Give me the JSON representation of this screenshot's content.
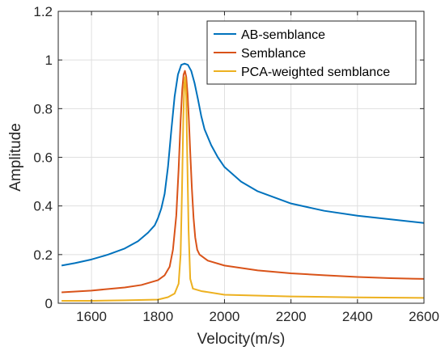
{
  "chart_data": {
    "type": "line",
    "title": "",
    "xlabel": "Velocity(m/s)",
    "ylabel": "Amplitude",
    "xlim": [
      1500,
      2600
    ],
    "ylim": [
      0,
      1.2
    ],
    "xticks": [
      1600,
      1800,
      2000,
      2200,
      2400,
      2600
    ],
    "xtick_labels": [
      "1600",
      "1800",
      "2000",
      "2200",
      "2400",
      "2600"
    ],
    "yticks": [
      0,
      0.2,
      0.4,
      0.6,
      0.8,
      1.0,
      1.2
    ],
    "ytick_labels": [
      "0",
      "0.2",
      "0.4",
      "0.6",
      "0.8",
      "1",
      "1.2"
    ],
    "grid": true,
    "legend_position": "top-right",
    "series": [
      {
        "name": "AB-semblance",
        "color": "#0072BD",
        "x": [
          1510,
          1550,
          1600,
          1650,
          1700,
          1740,
          1770,
          1790,
          1800,
          1810,
          1820,
          1830,
          1840,
          1850,
          1860,
          1870,
          1880,
          1890,
          1900,
          1910,
          1920,
          1930,
          1940,
          1960,
          1980,
          2000,
          2050,
          2100,
          2200,
          2300,
          2400,
          2500,
          2600
        ],
        "y": [
          0.155,
          0.165,
          0.18,
          0.2,
          0.225,
          0.255,
          0.29,
          0.32,
          0.35,
          0.39,
          0.45,
          0.56,
          0.71,
          0.85,
          0.94,
          0.98,
          0.985,
          0.98,
          0.955,
          0.905,
          0.84,
          0.77,
          0.715,
          0.65,
          0.6,
          0.56,
          0.5,
          0.46,
          0.41,
          0.38,
          0.36,
          0.345,
          0.33
        ]
      },
      {
        "name": "Semblance",
        "color": "#D95319",
        "x": [
          1510,
          1600,
          1700,
          1750,
          1800,
          1820,
          1835,
          1845,
          1855,
          1862,
          1868,
          1873,
          1877,
          1881,
          1885,
          1889,
          1893,
          1897,
          1902,
          1907,
          1912,
          1918,
          1925,
          1935,
          1950,
          2000,
          2100,
          2200,
          2300,
          2400,
          2500,
          2600
        ],
        "y": [
          0.045,
          0.052,
          0.065,
          0.075,
          0.095,
          0.115,
          0.15,
          0.22,
          0.36,
          0.55,
          0.75,
          0.88,
          0.94,
          0.955,
          0.93,
          0.86,
          0.75,
          0.62,
          0.47,
          0.35,
          0.27,
          0.22,
          0.2,
          0.19,
          0.175,
          0.155,
          0.135,
          0.123,
          0.115,
          0.108,
          0.103,
          0.1
        ]
      },
      {
        "name": "PCA-weighted semblance",
        "color": "#EDB120",
        "x": [
          1510,
          1600,
          1700,
          1800,
          1830,
          1850,
          1862,
          1868,
          1872,
          1876,
          1879,
          1882,
          1885,
          1888,
          1892,
          1897,
          1905,
          1930,
          2000,
          2200,
          2400,
          2600
        ],
        "y": [
          0.01,
          0.01,
          0.012,
          0.015,
          0.025,
          0.04,
          0.08,
          0.2,
          0.45,
          0.75,
          0.9,
          0.93,
          0.85,
          0.6,
          0.3,
          0.1,
          0.06,
          0.05,
          0.035,
          0.028,
          0.024,
          0.022
        ]
      }
    ]
  }
}
